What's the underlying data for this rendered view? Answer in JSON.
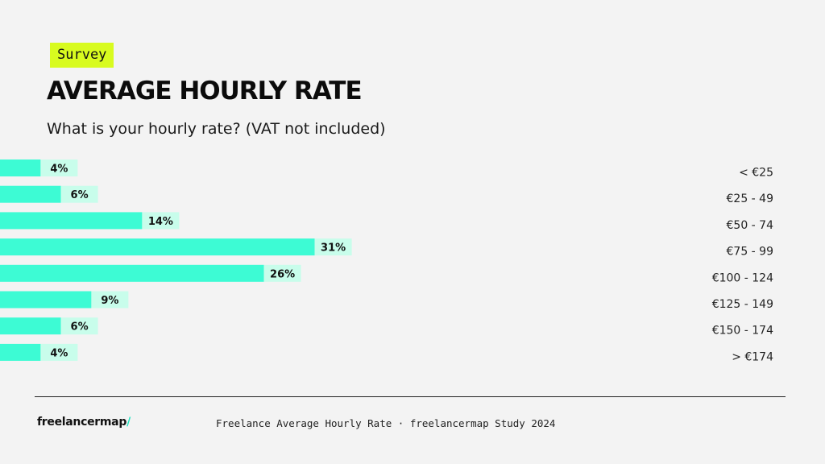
{
  "header": {
    "badge": "Survey",
    "title": "AVERAGE HOURLY RATE",
    "subtitle": "What is your hourly rate? (VAT not included)"
  },
  "chart_data": {
    "type": "bar",
    "orientation": "horizontal",
    "categories": [
      "< €25",
      "€25 - 49",
      "€50 - 74",
      "€75 - 99",
      "€100 - 124",
      "€125 - 149",
      "€150 - 174",
      "> €174"
    ],
    "values": [
      4,
      6,
      14,
      31,
      26,
      9,
      6,
      4
    ],
    "value_labels": [
      "4%",
      "6%",
      "14%",
      "31%",
      "26%",
      "9%",
      "6%",
      "4%"
    ],
    "unit": "%",
    "title": "AVERAGE HOURLY RATE",
    "subtitle": "What is your hourly rate? (VAT not included)",
    "xlabel": "",
    "ylabel": "",
    "grid": false,
    "legend": "none",
    "colors": {
      "bar": "#3dfbd4",
      "label_box": "#c8fdeb"
    }
  },
  "footer": {
    "logo_text": "freelancermap",
    "logo_slash": "/",
    "caption": "Freelance Average Hourly Rate · freelancermap Study 2024"
  },
  "colors": {
    "background": "#f3f3f3",
    "badge": "#d8fb1f",
    "accent": "#24e3c0"
  }
}
